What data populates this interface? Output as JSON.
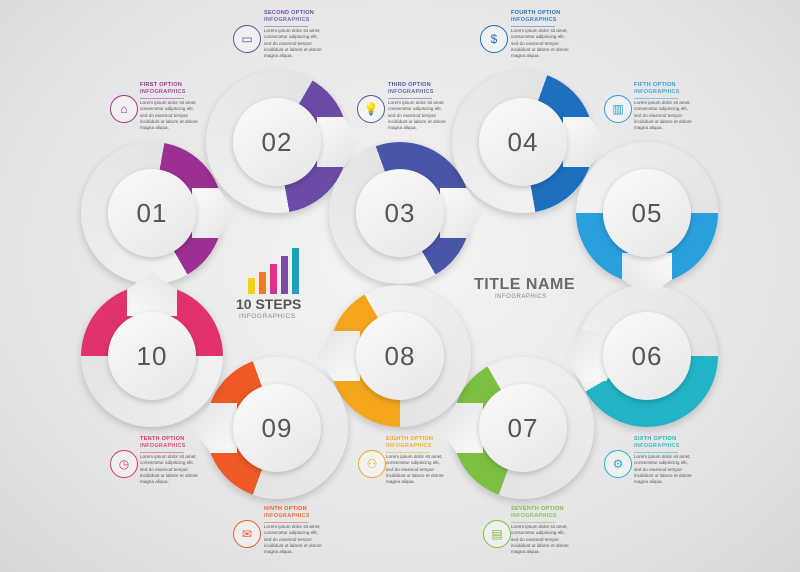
{
  "header": {
    "title": "TITLE NAME",
    "subtitle": "INFOGRAPHICS"
  },
  "logo": {
    "title": "10 STEPS",
    "subtitle": "INFOGRAPHICS",
    "bar_colors": [
      "#f2d21b",
      "#f07a2a",
      "#d7348f",
      "#7c4ba6",
      "#1aa3b8"
    ]
  },
  "steps": [
    {
      "number": "01",
      "title": "FIRST OPTION",
      "subtitle": "INFOGRAPHICS",
      "body": "Lorem ipsum dolor sit amet, consectetur adipiscing elit, sed do eiusmod tempor incididunt ut labore et dolore magna aliqua.",
      "color": "#9c2f92",
      "icon": "home-icon",
      "glyph": "⌂"
    },
    {
      "number": "02",
      "title": "SECOND OPTION",
      "subtitle": "INFOGRAPHICS",
      "body": "Lorem ipsum dolor sit amet, consectetur adipiscing elit, sed do eiusmod tempor incididunt ut labore et dolore magna aliqua.",
      "color": "#6a4ba6",
      "icon": "chat-icon",
      "glyph": "▭"
    },
    {
      "number": "03",
      "title": "THIRD OPTION",
      "subtitle": "INFOGRAPHICS",
      "body": "Lorem ipsum dolor sit amet, consectetur adipiscing elit, sed do eiusmod tempor incididunt ut labore et dolore magna aliqua.",
      "color": "#4a55a8",
      "icon": "lightbulb-icon",
      "glyph": "💡"
    },
    {
      "number": "04",
      "title": "FOURTH OPTION",
      "subtitle": "INFOGRAPHICS",
      "body": "Lorem ipsum dolor sit amet, consectetur adipiscing elit, sed do eiusmod tempor incididunt ut labore et dolore magna aliqua.",
      "color": "#1f6fbf",
      "icon": "money-hand-icon",
      "glyph": "$"
    },
    {
      "number": "05",
      "title": "FIFTH OPTION",
      "subtitle": "INFOGRAPHICS",
      "body": "Lorem ipsum dolor sit amet, consectetur adipiscing elit, sed do eiusmod tempor incididunt ut labore et dolore magna aliqua.",
      "color": "#2a9fdc",
      "icon": "chart-icon",
      "glyph": "▥"
    },
    {
      "number": "06",
      "title": "SIXTH OPTION",
      "subtitle": "INFOGRAPHICS",
      "body": "Lorem ipsum dolor sit amet, consectetur adipiscing elit, sed do eiusmod tempor incididunt ut labore et dolore magna aliqua.",
      "color": "#22b3c6",
      "icon": "gears-icon",
      "glyph": "⚙"
    },
    {
      "number": "07",
      "title": "SEVENTH OPTION",
      "subtitle": "INFOGRAPHICS",
      "body": "Lorem ipsum dolor sit amet, consectetur adipiscing elit, sed do eiusmod tempor incididunt ut labore et dolore magna aliqua.",
      "color": "#7cc043",
      "icon": "cash-icon",
      "glyph": "▤"
    },
    {
      "number": "08",
      "title": "EIGHTH OPTION",
      "subtitle": "INFOGRAPHICS",
      "body": "Lorem ipsum dolor sit amet, consectetur adipiscing elit, sed do eiusmod tempor incididunt ut labore et dolore magna aliqua.",
      "color": "#f3a51c",
      "icon": "people-icon",
      "glyph": "⚇"
    },
    {
      "number": "09",
      "title": "NINTH OPTION",
      "subtitle": "INFOGRAPHICS",
      "body": "Lorem ipsum dolor sit amet, consectetur adipiscing elit, sed do eiusmod tempor incididunt ut labore et dolore magna aliqua.",
      "color": "#ee5a24",
      "icon": "mail-icon",
      "glyph": "✉"
    },
    {
      "number": "10",
      "title": "TENTH OPTION",
      "subtitle": "INFOGRAPHICS",
      "body": "Lorem ipsum dolor sit amet, consectetur adipiscing elit, sed do eiusmod tempor incididunt ut labore et dolore magna aliqua.",
      "color": "#e0336c",
      "icon": "clock-icon",
      "glyph": "◷"
    }
  ]
}
